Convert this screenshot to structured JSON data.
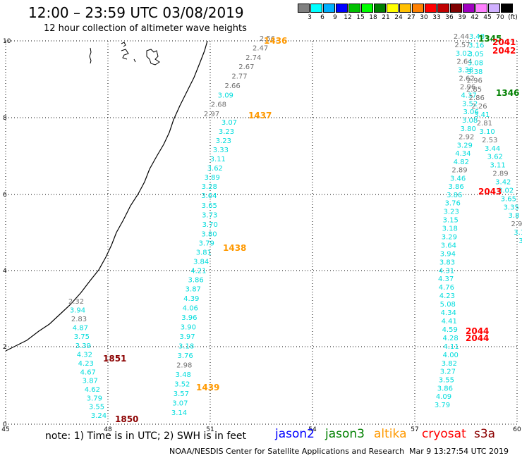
{
  "header": {
    "title": "12:00 – 23:59 UTC 03/08/2019",
    "subtitle": "12 hour collection of altimeter wave heights"
  },
  "legend": {
    "colors": [
      "#808080",
      "#00ffff",
      "#00b0ff",
      "#0000ff",
      "#00c000",
      "#00ff00",
      "#008000",
      "#ffff00",
      "#ffc000",
      "#ff8000",
      "#ff0000",
      "#c00000",
      "#800000",
      "#a000c0",
      "#ff80ff",
      "#d0b0ff",
      "#000000"
    ],
    "labels": [
      "3",
      "6",
      "9",
      "12",
      "15",
      "18",
      "21",
      "24",
      "27",
      "30",
      "33",
      "36",
      "39",
      "42",
      "45",
      "70",
      "(ft)"
    ]
  },
  "axes": {
    "x_ticks": [
      "45",
      "48",
      "51",
      "54",
      "57",
      "60"
    ],
    "y_ticks": [
      "0",
      "2",
      "4",
      "6",
      "8",
      "10"
    ]
  },
  "tracks": [
    {
      "id": "t1436",
      "color": "#808080",
      "start": [
        379,
        58
      ],
      "end": [
        300,
        165
      ],
      "values": [
        "2.56",
        "2.47",
        "2.74",
        "2.67",
        "2.77",
        "2.66",
        "3.09",
        "2.68",
        "2.97"
      ]
    },
    {
      "id": "t1437",
      "color": "#00e5e5",
      "start": [
        325,
        177
      ],
      "end": [
        254,
        589
      ],
      "values": [
        "3.07",
        "3.23",
        "3.23",
        "3.33",
        "3.11",
        "3.62",
        "3.89",
        "3.28",
        "3.64",
        "3.65",
        "3.73",
        "3.70",
        "3.80",
        "3.79",
        "3.81",
        "3.84",
        "4.21",
        "3.86",
        "3.87",
        "4.39",
        "4.06",
        "3.96",
        "3.90",
        "3.97",
        "3.18",
        "3.76",
        "2.98",
        "3.48",
        "3.52",
        "3.57",
        "3.07",
        "3.14"
      ]
    },
    {
      "id": "t1850",
      "color": "#00e5e5",
      "start": [
        108,
        431
      ],
      "end": [
        140,
        593
      ],
      "values": [
        "2.32",
        "3.94",
        "2.83",
        "4.87",
        "3.75",
        "3.39",
        "4.32",
        "4.23",
        "4.67",
        "3.87",
        "4.62",
        "3.79",
        "3.55",
        "3.24"
      ]
    },
    {
      "id": "t1345",
      "color": "#808080",
      "start": [
        654,
        55
      ],
      "end": [
        640,
        150
      ],
      "values": [
        "2.44",
        "2.57",
        "3.02",
        "2.64",
        "3.38",
        "2.62",
        "2.96",
        "4.37",
        "3.52",
        "3.06",
        "3.08",
        "3.80",
        "2.92",
        "3.29",
        "4.34",
        "4.82",
        "2.89",
        "3.46",
        "3.86",
        "3.86",
        "3.76",
        "3.23",
        "3.15",
        "3.18",
        "3.29",
        "3.64",
        "3.94",
        "3.83",
        "4.31",
        "4.37",
        "4.76",
        "4.23",
        "5.08",
        "4.34",
        "4.41",
        "4.59",
        "4.28",
        "4.11",
        "4.00",
        "3.82",
        "3.27",
        "3.55",
        "3.86",
        "4.09",
        "3.79"
      ]
    },
    {
      "id": "t1346",
      "color": "#808080",
      "start": [
        676,
        55
      ],
      "end": [
        740,
        345
      ],
      "values": [
        "3.48",
        "3.16",
        "3.05",
        "3.08",
        "3.38",
        "2.96",
        "2.85",
        "2.86",
        "2.26",
        "3.41",
        "2.81",
        "3.10",
        "2.53",
        "3.44",
        "3.62",
        "3.11",
        "2.89",
        "3.42",
        "3.02",
        "3.65",
        "3.35",
        "3.8",
        "2.9",
        "3.1",
        "3."
      ]
    }
  ],
  "pass_labels": [
    {
      "text": "1436",
      "color": "#ff9900"
    },
    {
      "text": "1437",
      "color": "#ff9900"
    },
    {
      "text": "1438",
      "color": "#ff9900"
    },
    {
      "text": "1439",
      "color": "#ff9900"
    },
    {
      "text": "1851",
      "color": "#8b0000"
    },
    {
      "text": "1850",
      "color": "#8b0000"
    },
    {
      "text": "1345",
      "color": "#008000"
    },
    {
      "text": "1346",
      "color": "#008000"
    },
    {
      "text": "2041",
      "color": "#ff0000"
    },
    {
      "text": "2042",
      "color": "#ff0000"
    },
    {
      "text": "2043",
      "color": "#ff0000"
    },
    {
      "text": "2044",
      "color": "#ff0000"
    },
    {
      "text": "2044",
      "color": "#ff0000"
    }
  ],
  "footer": {
    "note": "note: 1) Time is in UTC; 2) SWH is in feet",
    "satellites": [
      {
        "name": "jason2",
        "color": "#0000ff"
      },
      {
        "name": "jason3",
        "color": "#008000"
      },
      {
        "name": "altika",
        "color": "#ff9900"
      },
      {
        "name": "cryosat",
        "color": "#ff0000"
      },
      {
        "name": "s3a",
        "color": "#8b0000"
      }
    ],
    "credit": "NOAA/NESDIS Center for Satellite Applications and Research",
    "timestamp": "Mar  9 13:27:54 UTC 2019"
  }
}
